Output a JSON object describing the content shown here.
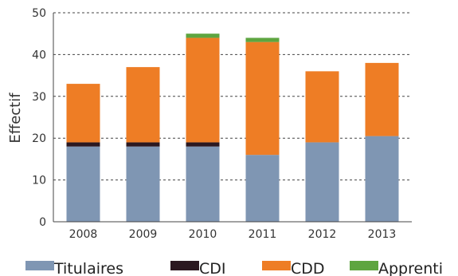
{
  "chart_data": {
    "type": "bar",
    "stacked": true,
    "title": "",
    "xlabel": "",
    "ylabel": "Effectif",
    "ylim": [
      0,
      50
    ],
    "yticks": [
      0,
      10,
      20,
      30,
      40,
      50
    ],
    "grid": true,
    "legend_position": "bottom",
    "categories": [
      "2008",
      "2009",
      "2010",
      "2011",
      "2012",
      "2013"
    ],
    "series": [
      {
        "name": "Titulaires",
        "color": "#7f96b3",
        "values": [
          18,
          18,
          18,
          16,
          19,
          20.5
        ]
      },
      {
        "name": "CDI",
        "color": "#2b1820",
        "values": [
          1,
          1,
          1,
          0,
          0,
          0
        ]
      },
      {
        "name": "CDD",
        "color": "#ee7d25",
        "values": [
          14,
          18,
          25,
          27,
          17,
          17.5
        ]
      },
      {
        "name": "Apprenti",
        "color": "#5ea540",
        "values": [
          0,
          0,
          1,
          1,
          0,
          0
        ]
      }
    ]
  }
}
